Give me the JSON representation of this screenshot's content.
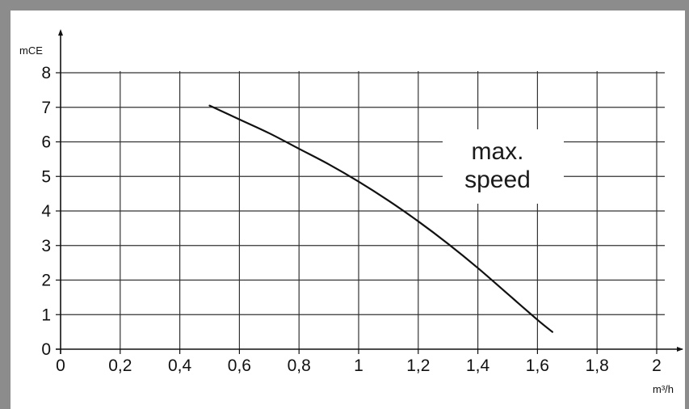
{
  "chart_data": {
    "type": "line",
    "title": "",
    "xlabel": "m³/h",
    "ylabel": "mCE",
    "xlim": [
      0,
      2
    ],
    "ylim": [
      0,
      8
    ],
    "grid": true,
    "x_tick_labels": [
      "0",
      "0,2",
      "0,4",
      "0,6",
      "0,8",
      "1",
      "1,2",
      "1,4",
      "1,6",
      "1,8",
      "2"
    ],
    "y_tick_labels": [
      "0",
      "1",
      "2",
      "3",
      "4",
      "5",
      "6",
      "7",
      "8"
    ],
    "annotation": {
      "line1": "max.",
      "line2": "speed"
    },
    "series": [
      {
        "x": [
          0.5,
          0.6,
          0.7,
          0.8,
          0.9,
          1.0,
          1.1,
          1.2,
          1.3,
          1.4,
          1.5,
          1.6,
          1.65
        ],
        "y": [
          7.05,
          6.65,
          6.25,
          5.8,
          5.35,
          4.85,
          4.3,
          3.7,
          3.05,
          2.35,
          1.6,
          0.85,
          0.5
        ]
      }
    ]
  }
}
